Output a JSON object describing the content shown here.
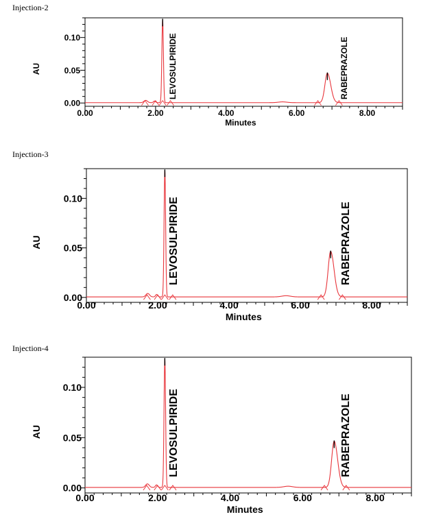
{
  "chart_data": [
    {
      "type": "line",
      "title": "Injection-2",
      "xlabel": "Minutes",
      "ylabel": "AU",
      "xlim": [
        0,
        9
      ],
      "ylim": [
        -0.005,
        0.13
      ],
      "x_ticks": [
        "0.00",
        "2.00",
        "4.00",
        "6.00",
        "8.00"
      ],
      "y_ticks": [
        "0.00",
        "0.05",
        "0.10"
      ],
      "grid": false,
      "series_color": "#e8343a",
      "peaks": [
        {
          "name": "LEVOSULPIRIDE",
          "rt": 2.2,
          "height": 0.127
        },
        {
          "name": "RABEPRAZOLE",
          "rt": 6.87,
          "height": 0.045
        }
      ]
    },
    {
      "type": "line",
      "title": "Injection-3",
      "xlabel": "Minutes",
      "ylabel": "AU",
      "xlim": [
        0,
        9
      ],
      "ylim": [
        -0.005,
        0.13
      ],
      "x_ticks": [
        "0.00",
        "2.00",
        "4.00",
        "6.00",
        "8.00"
      ],
      "y_ticks": [
        "0.00",
        "0.05",
        "0.10"
      ],
      "grid": false,
      "series_color": "#e8343a",
      "peaks": [
        {
          "name": "LEVOSULPIRIDE",
          "rt": 2.2,
          "height": 0.128
        },
        {
          "name": "RABEPRAZOLE",
          "rt": 6.85,
          "height": 0.046
        }
      ]
    },
    {
      "type": "line",
      "title": "Injection-4",
      "xlabel": "Minutes",
      "ylabel": "AU",
      "xlim": [
        0,
        9
      ],
      "ylim": [
        -0.005,
        0.13
      ],
      "x_ticks": [
        "0.00",
        "2.00",
        "4.00",
        "6.00",
        "8.00"
      ],
      "y_ticks": [
        "0.00",
        "0.05",
        "0.10"
      ],
      "grid": false,
      "series_color": "#e8343a",
      "peaks": [
        {
          "name": "LEVOSULPIRIDE",
          "rt": 2.2,
          "height": 0.128
        },
        {
          "name": "RABEPRAZOLE",
          "rt": 6.87,
          "height": 0.046
        }
      ]
    }
  ]
}
